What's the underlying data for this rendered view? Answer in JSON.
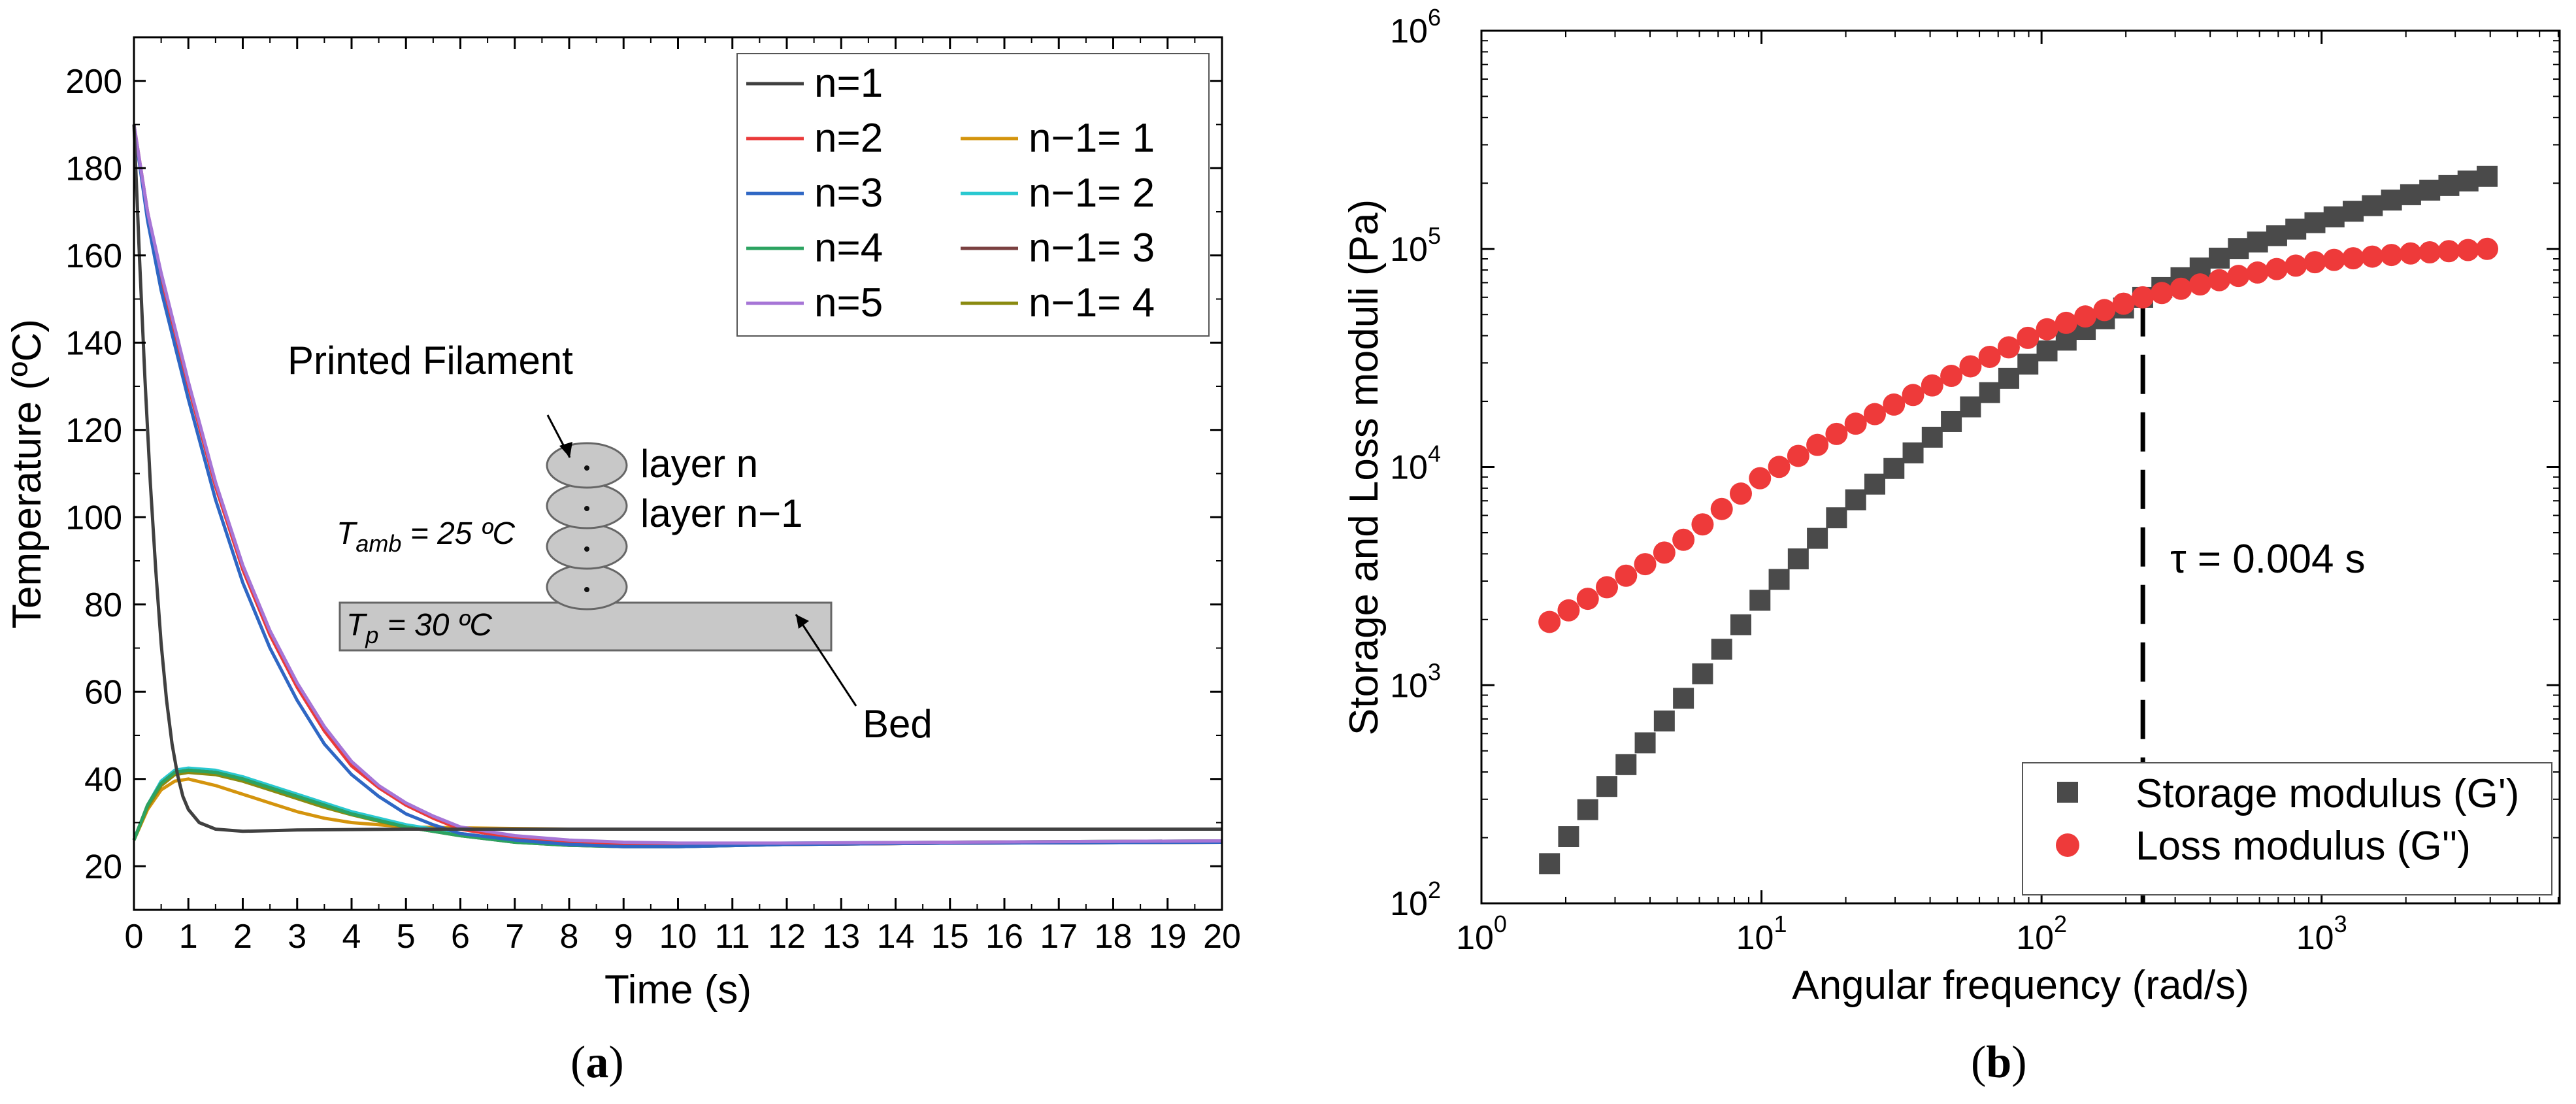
{
  "chart_data": [
    {
      "id": "a",
      "type": "line",
      "caption_open": "(",
      "caption_letter": "a",
      "caption_close": ")",
      "xlabel": "Time (s)",
      "ylabel": "Temperature (ºC)",
      "xlim": [
        0,
        20
      ],
      "ylim": [
        10,
        210
      ],
      "xticks": [
        "0",
        "1",
        "2",
        "3",
        "4",
        "5",
        "6",
        "7",
        "8",
        "9",
        "10",
        "11",
        "12",
        "13",
        "14",
        "15",
        "16",
        "17",
        "18",
        "19",
        "20"
      ],
      "yticks": [
        "20",
        "40",
        "60",
        "80",
        "100",
        "120",
        "140",
        "160",
        "180",
        "200"
      ],
      "legend_position": "top-right",
      "series": [
        {
          "name": "n=1",
          "color": "#404040",
          "points": [
            [
              0,
              190
            ],
            [
              0.1,
              160
            ],
            [
              0.2,
              132
            ],
            [
              0.3,
              108
            ],
            [
              0.4,
              88
            ],
            [
              0.5,
              71
            ],
            [
              0.6,
              58
            ],
            [
              0.7,
              48
            ],
            [
              0.8,
              41
            ],
            [
              0.9,
              36
            ],
            [
              1,
              33
            ],
            [
              1.2,
              30
            ],
            [
              1.5,
              28.5
            ],
            [
              2,
              28
            ],
            [
              3,
              28.3
            ],
            [
              5,
              28.5
            ],
            [
              8,
              28.5
            ],
            [
              10,
              28.5
            ],
            [
              15,
              28.5
            ],
            [
              20,
              28.5
            ]
          ]
        },
        {
          "name": "n=2",
          "color": "#ea3a3a",
          "points": [
            [
              0,
              190
            ],
            [
              0.25,
              170
            ],
            [
              0.5,
              155
            ],
            [
              1,
              130
            ],
            [
              1.5,
              107
            ],
            [
              2,
              88
            ],
            [
              2.5,
              73
            ],
            [
              3,
              61
            ],
            [
              3.5,
              51
            ],
            [
              4,
              43
            ],
            [
              4.5,
              38
            ],
            [
              5,
              34
            ],
            [
              5.5,
              31
            ],
            [
              6,
              28.5
            ],
            [
              7,
              26.5
            ],
            [
              8,
              25.5
            ],
            [
              9,
              25
            ],
            [
              10,
              25
            ],
            [
              12,
              25
            ],
            [
              15,
              25.3
            ],
            [
              20,
              25.5
            ]
          ]
        },
        {
          "name": "n=3",
          "color": "#2f67c4",
          "points": [
            [
              0,
              190
            ],
            [
              0.25,
              168
            ],
            [
              0.5,
              152
            ],
            [
              1,
              127
            ],
            [
              1.5,
              104
            ],
            [
              2,
              85
            ],
            [
              2.5,
              70
            ],
            [
              3,
              58
            ],
            [
              3.5,
              48
            ],
            [
              4,
              41
            ],
            [
              4.5,
              36
            ],
            [
              5,
              32
            ],
            [
              5.5,
              29.5
            ],
            [
              6,
              27.5
            ],
            [
              7,
              26
            ],
            [
              8,
              25
            ],
            [
              9,
              24.5
            ],
            [
              10,
              24.5
            ],
            [
              12,
              25
            ],
            [
              15,
              25.3
            ],
            [
              20,
              25.5
            ]
          ]
        },
        {
          "name": "n=4",
          "color": "#2ca361",
          "points": [
            [
              0,
              26
            ],
            [
              0.25,
              34
            ],
            [
              0.5,
              39
            ],
            [
              0.75,
              41.5
            ],
            [
              1,
              42
            ],
            [
              1.5,
              41.5
            ],
            [
              2,
              40
            ],
            [
              2.5,
              38
            ],
            [
              3,
              36
            ],
            [
              3.5,
              34
            ],
            [
              4,
              32
            ],
            [
              4.5,
              30.5
            ],
            [
              5,
              29
            ],
            [
              5.5,
              28
            ],
            [
              6,
              27
            ],
            [
              7,
              25.5
            ],
            [
              8,
              24.8
            ],
            [
              9,
              24.5
            ],
            [
              10,
              24.5
            ],
            [
              12,
              25
            ],
            [
              15,
              25.3
            ],
            [
              20,
              25.5
            ]
          ]
        },
        {
          "name": "n=5",
          "color": "#a675d6",
          "points": [
            [
              0,
              190
            ],
            [
              0.25,
              170
            ],
            [
              0.5,
              156
            ],
            [
              1,
              131
            ],
            [
              1.5,
              108
            ],
            [
              2,
              89
            ],
            [
              2.5,
              74
            ],
            [
              3,
              62
            ],
            [
              3.5,
              52
            ],
            [
              4,
              44
            ],
            [
              4.5,
              38.5
            ],
            [
              5,
              34.5
            ],
            [
              5.5,
              31.5
            ],
            [
              6,
              29
            ],
            [
              7,
              27
            ],
            [
              8,
              26
            ],
            [
              9,
              25.5
            ],
            [
              10,
              25.3
            ],
            [
              12,
              25.3
            ],
            [
              15,
              25.5
            ],
            [
              20,
              25.8
            ]
          ]
        },
        {
          "name": "n−1= 1",
          "color": "#d4940d",
          "points": [
            [
              0,
              26
            ],
            [
              0.25,
              33
            ],
            [
              0.5,
              37.5
            ],
            [
              0.75,
              39.5
            ],
            [
              1,
              40
            ],
            [
              1.5,
              38.5
            ],
            [
              2,
              36.5
            ],
            [
              2.5,
              34.5
            ],
            [
              3,
              32.5
            ],
            [
              3.5,
              31
            ],
            [
              4,
              30
            ],
            [
              4.5,
              29.5
            ],
            [
              5,
              29
            ],
            [
              6,
              28.8
            ],
            [
              8,
              28.5
            ],
            [
              10,
              28.5
            ],
            [
              15,
              28.5
            ],
            [
              20,
              28.5
            ]
          ]
        },
        {
          "name": "n−1= 2",
          "color": "#29c8d0",
          "points": [
            [
              0,
              26
            ],
            [
              0.25,
              34
            ],
            [
              0.5,
              39.5
            ],
            [
              0.75,
              42
            ],
            [
              1,
              42.5
            ],
            [
              1.5,
              42
            ],
            [
              2,
              40.5
            ],
            [
              2.5,
              38.5
            ],
            [
              3,
              36.5
            ],
            [
              3.5,
              34.5
            ],
            [
              4,
              32.5
            ],
            [
              4.5,
              31
            ],
            [
              5,
              29.5
            ],
            [
              5.5,
              28.5
            ],
            [
              6,
              27.5
            ],
            [
              7,
              26
            ],
            [
              8,
              25.3
            ],
            [
              9,
              25
            ],
            [
              10,
              25
            ],
            [
              12,
              25.3
            ],
            [
              15,
              25.5
            ],
            [
              20,
              25.8
            ]
          ]
        },
        {
          "name": "n−1= 3",
          "color": "#7a4040",
          "points": [
            [
              0,
              26
            ],
            [
              0.25,
              34
            ],
            [
              0.5,
              39
            ],
            [
              0.75,
              41.5
            ],
            [
              1,
              42
            ],
            [
              1.5,
              41.5
            ],
            [
              2,
              40
            ],
            [
              2.5,
              38
            ],
            [
              3,
              36
            ],
            [
              3.5,
              34
            ],
            [
              4,
              32
            ],
            [
              4.5,
              30.5
            ],
            [
              5,
              29
            ],
            [
              5.5,
              28
            ],
            [
              6,
              27
            ],
            [
              7,
              25.5
            ],
            [
              8,
              24.8
            ],
            [
              9,
              24.5
            ],
            [
              10,
              24.5
            ],
            [
              12,
              25
            ],
            [
              15,
              25.3
            ],
            [
              20,
              25.5
            ]
          ]
        },
        {
          "name": "n−1= 4",
          "color": "#8a8a10",
          "points": [
            [
              0,
              26
            ],
            [
              0.25,
              33.5
            ],
            [
              0.5,
              38.5
            ],
            [
              0.75,
              41
            ],
            [
              1,
              41.5
            ],
            [
              1.5,
              41
            ],
            [
              2,
              39.5
            ],
            [
              2.5,
              37.5
            ],
            [
              3,
              35.5
            ],
            [
              3.5,
              33.5
            ],
            [
              4,
              31.8
            ],
            [
              4.5,
              30.3
            ],
            [
              5,
              29
            ],
            [
              5.5,
              28
            ],
            [
              6,
              27
            ],
            [
              7,
              25.8
            ],
            [
              8,
              25.2
            ],
            [
              9,
              25
            ],
            [
              10,
              25
            ],
            [
              12,
              25.2
            ],
            [
              15,
              25.5
            ],
            [
              20,
              25.8
            ]
          ]
        }
      ],
      "inset": {
        "printed_filament": "Printed Filament",
        "layer_n": "layer n",
        "layer_n1": "layer n−1",
        "t_amb_symbol": "T",
        "t_amb_sub": "amb",
        "t_amb_value": " = 25 ºC",
        "t_p_symbol": "T",
        "t_p_sub": "p",
        "t_p_value": " = 30 ºC",
        "bed": "Bed"
      }
    },
    {
      "id": "b",
      "type": "scatter",
      "caption_open": "(",
      "caption_letter": "b",
      "caption_close": ")",
      "xlabel": "Angular frequency (rad/s)",
      "ylabel": "Storage and Loss moduli (Pa)",
      "xscale": "log",
      "yscale": "log",
      "xlim_log10": [
        0,
        3.85
      ],
      "ylim_log10": [
        2,
        6
      ],
      "xticks": [
        {
          "base": "10",
          "exp": "0"
        },
        {
          "base": "10",
          "exp": "1"
        },
        {
          "base": "10",
          "exp": "2"
        },
        {
          "base": "10",
          "exp": "3"
        }
      ],
      "yticks": [
        {
          "base": "10",
          "exp": "2"
        },
        {
          "base": "10",
          "exp": "3"
        },
        {
          "base": "10",
          "exp": "4"
        },
        {
          "base": "10",
          "exp": "5"
        },
        {
          "base": "10",
          "exp": "6"
        }
      ],
      "annotation": {
        "text": "τ = 0.004 s",
        "x": 230
      },
      "legend_position": "bottom-right",
      "series": [
        {
          "name": "Storage modulus (G')",
          "marker": "square",
          "color": "#4a4a4a",
          "omega_start": 1.75,
          "omega_end": 3900,
          "count": 50,
          "anchors": [
            [
              1.75,
              152
            ],
            [
              2.5,
              290
            ],
            [
              5,
              800
            ],
            [
              10,
              2500
            ],
            [
              20,
              6500
            ],
            [
              50,
              17000
            ],
            [
              100,
              33000
            ],
            [
              230,
              60000
            ],
            [
              500,
              100000
            ],
            [
              1000,
              135000
            ],
            [
              2000,
              175000
            ],
            [
              3900,
              215000
            ]
          ]
        },
        {
          "name": "Loss modulus (G'')",
          "marker": "circle",
          "color": "#ee3a3a",
          "omega_start": 1.75,
          "omega_end": 3900,
          "count": 50,
          "anchors": [
            [
              1.75,
              1950
            ],
            [
              5,
              4400
            ],
            [
              10,
              9000
            ],
            [
              20,
              15000
            ],
            [
              50,
              27000
            ],
            [
              100,
              42000
            ],
            [
              230,
              60000
            ],
            [
              500,
              75000
            ],
            [
              1000,
              88000
            ],
            [
              2000,
              95000
            ],
            [
              3900,
              100000
            ]
          ]
        }
      ]
    }
  ]
}
